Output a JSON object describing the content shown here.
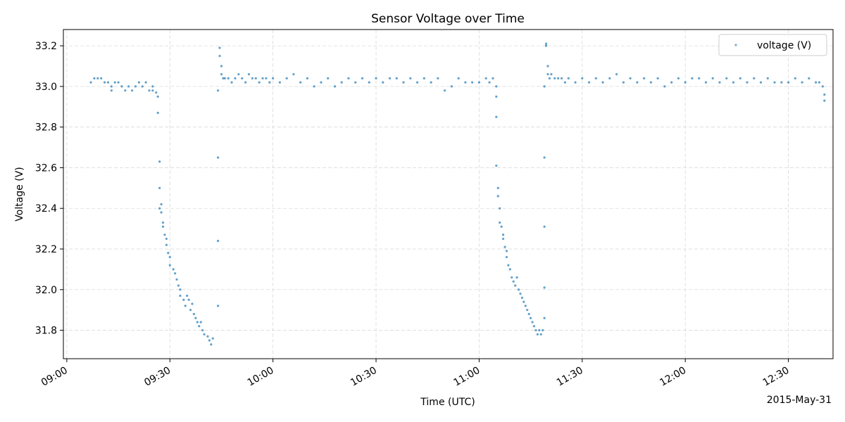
{
  "chart_data": {
    "type": "scatter",
    "title": "Sensor Voltage over Time",
    "xlabel": "Time (UTC)",
    "ylabel": "Voltage (V)",
    "date_label": "2015-May-31",
    "x_ticks": [
      "09:00",
      "09:30",
      "10:00",
      "10:30",
      "11:00",
      "11:30",
      "12:00",
      "12:30"
    ],
    "x_tick_minutes": [
      0,
      30,
      60,
      90,
      120,
      150,
      180,
      210
    ],
    "y_ticks": [
      "31.8",
      "32.0",
      "32.2",
      "32.4",
      "32.6",
      "32.8",
      "33.0",
      "33.2"
    ],
    "y_tick_values": [
      31.8,
      32.0,
      32.2,
      32.4,
      32.6,
      32.8,
      33.0,
      33.2
    ],
    "xlim": [
      "08:59",
      "12:43"
    ],
    "ylim": [
      31.66,
      33.28
    ],
    "grid": true,
    "legend_position": "top-right",
    "series": [
      {
        "name": "voltage (V)",
        "color": "#1f77b4",
        "points": [
          [
            "09:07",
            33.02
          ],
          [
            "09:08",
            33.04
          ],
          [
            "09:09",
            33.04
          ],
          [
            "09:10",
            33.04
          ],
          [
            "09:11",
            33.02
          ],
          [
            "09:12",
            33.02
          ],
          [
            "09:13",
            33.0
          ],
          [
            "09:13",
            32.98
          ],
          [
            "09:14",
            33.02
          ],
          [
            "09:15",
            33.02
          ],
          [
            "09:16",
            33.0
          ],
          [
            "09:17",
            32.98
          ],
          [
            "09:18",
            33.0
          ],
          [
            "09:19",
            32.98
          ],
          [
            "09:20",
            33.0
          ],
          [
            "09:21",
            33.02
          ],
          [
            "09:22",
            33.0
          ],
          [
            "09:23",
            33.02
          ],
          [
            "09:24",
            32.98
          ],
          [
            "09:25",
            33.0
          ],
          [
            "09:25",
            32.98
          ],
          [
            "09:26",
            32.97
          ],
          [
            "09:26.5",
            32.95
          ],
          [
            "09:26.5",
            32.87
          ],
          [
            "09:27",
            32.63
          ],
          [
            "09:27",
            32.5
          ],
          [
            "09:27",
            32.4
          ],
          [
            "09:27.5",
            32.42
          ],
          [
            "09:27.5",
            32.38
          ],
          [
            "09:28",
            32.33
          ],
          [
            "09:28",
            32.31
          ],
          [
            "09:28.5",
            32.27
          ],
          [
            "09:29",
            32.25
          ],
          [
            "09:29",
            32.22
          ],
          [
            "09:29.5",
            32.18
          ],
          [
            "09:30",
            32.16
          ],
          [
            "09:30",
            32.12
          ],
          [
            "09:31",
            32.1
          ],
          [
            "09:31.5",
            32.08
          ],
          [
            "09:32",
            32.05
          ],
          [
            "09:32.5",
            32.02
          ],
          [
            "09:33",
            32.0
          ],
          [
            "09:33",
            31.97
          ],
          [
            "09:34",
            31.95
          ],
          [
            "09:34.5",
            31.92
          ],
          [
            "09:35",
            31.97
          ],
          [
            "09:35.5",
            31.95
          ],
          [
            "09:36",
            31.9
          ],
          [
            "09:36.5",
            31.93
          ],
          [
            "09:37",
            31.88
          ],
          [
            "09:37.5",
            31.86
          ],
          [
            "09:38",
            31.84
          ],
          [
            "09:38.5",
            31.82
          ],
          [
            "09:39",
            31.84
          ],
          [
            "09:39.5",
            31.8
          ],
          [
            "09:40",
            31.78
          ],
          [
            "09:41",
            31.77
          ],
          [
            "09:41.5",
            31.75
          ],
          [
            "09:42",
            31.73
          ],
          [
            "09:42.5",
            31.76
          ],
          [
            "09:44",
            31.92
          ],
          [
            "09:44",
            32.24
          ],
          [
            "09:44",
            32.65
          ],
          [
            "09:44",
            32.98
          ],
          [
            "09:44.5",
            33.15
          ],
          [
            "09:44.5",
            33.19
          ],
          [
            "09:45",
            33.1
          ],
          [
            "09:45",
            33.06
          ],
          [
            "09:45.5",
            33.04
          ],
          [
            "09:46",
            33.04
          ],
          [
            "09:47",
            33.04
          ],
          [
            "09:48",
            33.02
          ],
          [
            "09:49",
            33.04
          ],
          [
            "09:50",
            33.06
          ],
          [
            "09:51",
            33.04
          ],
          [
            "09:52",
            33.02
          ],
          [
            "09:53",
            33.06
          ],
          [
            "09:54",
            33.04
          ],
          [
            "09:55",
            33.04
          ],
          [
            "09:56",
            33.02
          ],
          [
            "09:57",
            33.04
          ],
          [
            "09:58",
            33.04
          ],
          [
            "09:59",
            33.02
          ],
          [
            "10:00",
            33.04
          ],
          [
            "10:02",
            33.02
          ],
          [
            "10:04",
            33.04
          ],
          [
            "10:06",
            33.06
          ],
          [
            "10:08",
            33.02
          ],
          [
            "10:10",
            33.04
          ],
          [
            "10:12",
            33.0
          ],
          [
            "10:14",
            33.02
          ],
          [
            "10:16",
            33.04
          ],
          [
            "10:18",
            33.0
          ],
          [
            "10:20",
            33.02
          ],
          [
            "10:22",
            33.04
          ],
          [
            "10:24",
            33.02
          ],
          [
            "10:26",
            33.04
          ],
          [
            "10:28",
            33.02
          ],
          [
            "10:30",
            33.04
          ],
          [
            "10:32",
            33.02
          ],
          [
            "10:34",
            33.04
          ],
          [
            "10:36",
            33.04
          ],
          [
            "10:38",
            33.02
          ],
          [
            "10:40",
            33.04
          ],
          [
            "10:42",
            33.02
          ],
          [
            "10:44",
            33.04
          ],
          [
            "10:46",
            33.02
          ],
          [
            "10:48",
            33.04
          ],
          [
            "10:50",
            32.98
          ],
          [
            "10:52",
            33.0
          ],
          [
            "10:54",
            33.04
          ],
          [
            "10:56",
            33.02
          ],
          [
            "10:58",
            33.02
          ],
          [
            "11:00",
            33.02
          ],
          [
            "11:02",
            33.04
          ],
          [
            "11:03",
            33.02
          ],
          [
            "11:04",
            33.04
          ],
          [
            "11:05",
            33.0
          ],
          [
            "11:05",
            32.95
          ],
          [
            "11:05",
            32.85
          ],
          [
            "11:05",
            32.61
          ],
          [
            "11:05.5",
            32.5
          ],
          [
            "11:05.5",
            32.46
          ],
          [
            "11:06",
            32.4
          ],
          [
            "11:06",
            32.33
          ],
          [
            "11:06.5",
            32.31
          ],
          [
            "11:07",
            32.27
          ],
          [
            "11:07",
            32.25
          ],
          [
            "11:07.5",
            32.21
          ],
          [
            "11:08",
            32.19
          ],
          [
            "11:08",
            32.16
          ],
          [
            "11:08.5",
            32.12
          ],
          [
            "11:09",
            32.1
          ],
          [
            "11:09.5",
            32.06
          ],
          [
            "11:10",
            32.04
          ],
          [
            "11:10.5",
            32.02
          ],
          [
            "11:11",
            32.06
          ],
          [
            "11:11.5",
            32.0
          ],
          [
            "11:12",
            31.98
          ],
          [
            "11:12.5",
            31.96
          ],
          [
            "11:13",
            31.94
          ],
          [
            "11:13.5",
            31.92
          ],
          [
            "11:14",
            31.9
          ],
          [
            "11:14.5",
            31.88
          ],
          [
            "11:15",
            31.86
          ],
          [
            "11:15.5",
            31.84
          ],
          [
            "11:16",
            31.82
          ],
          [
            "11:16.5",
            31.8
          ],
          [
            "11:17",
            31.78
          ],
          [
            "11:17.5",
            31.8
          ],
          [
            "11:18",
            31.78
          ],
          [
            "11:18.5",
            31.8
          ],
          [
            "11:19",
            31.86
          ],
          [
            "11:19",
            32.01
          ],
          [
            "11:19",
            32.31
          ],
          [
            "11:19",
            32.65
          ],
          [
            "11:19",
            33.0
          ],
          [
            "11:19.5",
            33.2
          ],
          [
            "11:19.5",
            33.21
          ],
          [
            "11:20",
            33.1
          ],
          [
            "11:20",
            33.06
          ],
          [
            "11:20.5",
            33.04
          ],
          [
            "11:21",
            33.06
          ],
          [
            "11:22",
            33.04
          ],
          [
            "11:23",
            33.04
          ],
          [
            "11:24",
            33.04
          ],
          [
            "11:25",
            33.02
          ],
          [
            "11:26",
            33.04
          ],
          [
            "11:28",
            33.02
          ],
          [
            "11:30",
            33.04
          ],
          [
            "11:32",
            33.02
          ],
          [
            "11:34",
            33.04
          ],
          [
            "11:36",
            33.02
          ],
          [
            "11:38",
            33.04
          ],
          [
            "11:40",
            33.06
          ],
          [
            "11:42",
            33.02
          ],
          [
            "11:44",
            33.04
          ],
          [
            "11:46",
            33.02
          ],
          [
            "11:48",
            33.04
          ],
          [
            "11:50",
            33.02
          ],
          [
            "11:52",
            33.04
          ],
          [
            "11:54",
            33.0
          ],
          [
            "11:56",
            33.02
          ],
          [
            "11:58",
            33.04
          ],
          [
            "12:00",
            33.02
          ],
          [
            "12:02",
            33.04
          ],
          [
            "12:04",
            33.04
          ],
          [
            "12:06",
            33.02
          ],
          [
            "12:08",
            33.04
          ],
          [
            "12:10",
            33.02
          ],
          [
            "12:12",
            33.04
          ],
          [
            "12:14",
            33.02
          ],
          [
            "12:16",
            33.04
          ],
          [
            "12:18",
            33.02
          ],
          [
            "12:20",
            33.04
          ],
          [
            "12:22",
            33.02
          ],
          [
            "12:24",
            33.04
          ],
          [
            "12:26",
            33.02
          ],
          [
            "12:28",
            33.02
          ],
          [
            "12:30",
            33.02
          ],
          [
            "12:32",
            33.04
          ],
          [
            "12:34",
            33.02
          ],
          [
            "12:36",
            33.04
          ],
          [
            "12:38",
            33.02
          ],
          [
            "12:39",
            33.02
          ],
          [
            "12:40",
            33.0
          ],
          [
            "12:40.5",
            32.96
          ],
          [
            "12:40.5",
            32.93
          ]
        ]
      }
    ]
  }
}
